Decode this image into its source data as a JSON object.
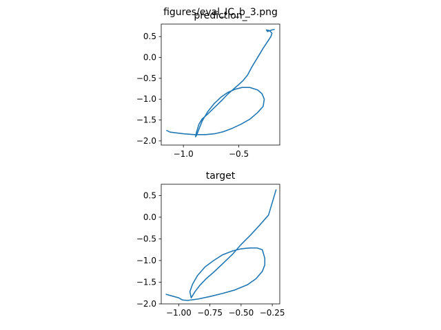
{
  "figure": {
    "suptitle": "figures/eval_IC_b_3.png"
  },
  "colors": {
    "series": "#1f77b4",
    "axes": "#000000",
    "background": "#ffffff"
  },
  "chart_data": [
    {
      "type": "line",
      "title": "prediction_",
      "xlabel": "",
      "ylabel": "",
      "xlim": [
        -1.2,
        -0.13
      ],
      "ylim": [
        -2.1,
        0.8
      ],
      "xticks": [
        -1.0,
        -0.5
      ],
      "xtick_labels": [
        "−1.0",
        "−0.5"
      ],
      "yticks": [
        0.5,
        0.0,
        -0.5,
        -1.0,
        -1.5,
        -2.0
      ],
      "ytick_labels": [
        "0.5",
        "0.0",
        "−0.5",
        "−1.0",
        "−1.5",
        "−2.0"
      ],
      "grid": false,
      "series": [
        {
          "x": [
            -1.15,
            -1.12,
            -1.0,
            -0.9,
            -0.8,
            -0.72,
            -0.64,
            -0.56,
            -0.48,
            -0.4,
            -0.33,
            -0.28,
            -0.27,
            -0.29,
            -0.33,
            -0.4,
            -0.47,
            -0.53,
            -0.6,
            -0.66,
            -0.72,
            -0.78,
            -0.83,
            -0.86,
            -0.88,
            -0.89,
            -0.88,
            -0.86,
            -0.83,
            -0.79,
            -0.75,
            -0.7,
            -0.65,
            -0.6,
            -0.54,
            -0.5,
            -0.46,
            -0.42,
            -0.38,
            -0.33,
            -0.28,
            -0.24,
            -0.21,
            -0.2,
            -0.22,
            -0.25,
            -0.24,
            -0.2,
            -0.18
          ],
          "y": [
            -1.75,
            -1.79,
            -1.83,
            -1.85,
            -1.85,
            -1.83,
            -1.78,
            -1.7,
            -1.6,
            -1.48,
            -1.32,
            -1.17,
            -1.0,
            -0.87,
            -0.78,
            -0.72,
            -0.72,
            -0.76,
            -0.84,
            -0.95,
            -1.1,
            -1.3,
            -1.52,
            -1.72,
            -1.86,
            -1.9,
            -1.78,
            -1.6,
            -1.47,
            -1.38,
            -1.28,
            -1.15,
            -1.02,
            -0.88,
            -0.74,
            -0.65,
            -0.55,
            -0.42,
            -0.22,
            0.0,
            0.22,
            0.38,
            0.5,
            0.58,
            0.64,
            0.66,
            0.62,
            0.66,
            0.67
          ]
        }
      ]
    },
    {
      "type": "line",
      "title": "target",
      "xlabel": "",
      "ylabel": "",
      "xlim": [
        -1.14,
        -0.19
      ],
      "ylim": [
        -2.0,
        0.76
      ],
      "xticks": [
        -1.0,
        -0.75,
        -0.5,
        -0.25
      ],
      "xtick_labels": [
        "−1.00",
        "−0.75",
        "−0.50",
        "−0.25"
      ],
      "yticks": [
        0.5,
        0.0,
        -0.5,
        -1.0,
        -1.5,
        -2.0
      ],
      "ytick_labels": [
        "0.5",
        "0.0",
        "−0.5",
        "−1.0",
        "−1.5",
        "−2.0"
      ],
      "grid": false,
      "series": [
        {
          "x": [
            -1.1,
            -1.05,
            -1.0,
            -0.97,
            -0.93,
            -0.85,
            -0.75,
            -0.65,
            -0.55,
            -0.45,
            -0.38,
            -0.33,
            -0.31,
            -0.31,
            -0.33,
            -0.37,
            -0.43,
            -0.5,
            -0.57,
            -0.65,
            -0.72,
            -0.79,
            -0.85,
            -0.89,
            -0.91,
            -0.9,
            -0.87,
            -0.83,
            -0.78,
            -0.72,
            -0.65,
            -0.57,
            -0.5,
            -0.42,
            -0.35,
            -0.28,
            -0.22
          ],
          "y": [
            -1.78,
            -1.82,
            -1.86,
            -1.91,
            -1.92,
            -1.89,
            -1.83,
            -1.76,
            -1.68,
            -1.56,
            -1.42,
            -1.25,
            -1.1,
            -0.95,
            -0.75,
            -0.71,
            -0.71,
            -0.73,
            -0.78,
            -0.87,
            -1.0,
            -1.15,
            -1.35,
            -1.55,
            -1.72,
            -1.86,
            -1.72,
            -1.57,
            -1.42,
            -1.27,
            -1.08,
            -0.86,
            -0.63,
            -0.4,
            -0.18,
            0.05,
            0.63
          ]
        }
      ]
    }
  ]
}
